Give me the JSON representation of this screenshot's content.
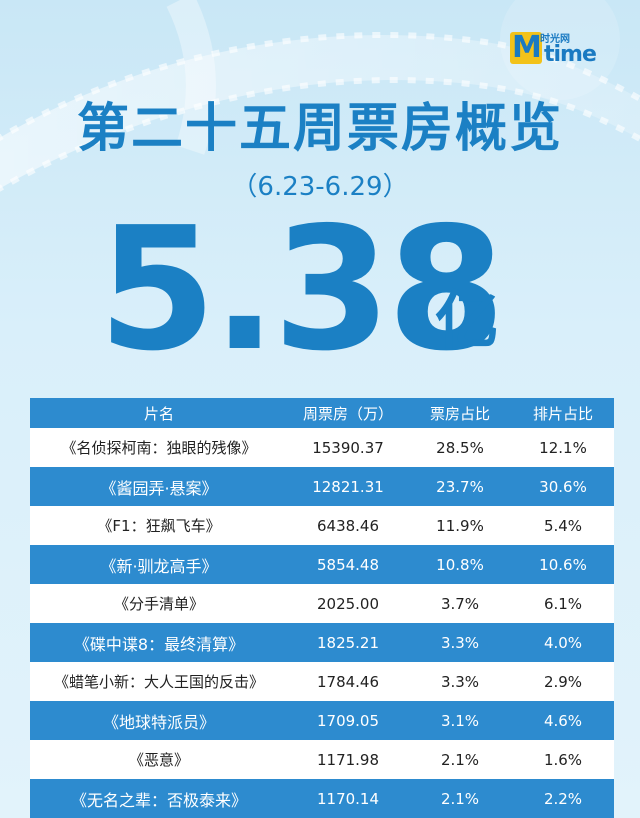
{
  "logo": {
    "small_text": "时光网",
    "brand_text": "time"
  },
  "title": "第二十五周票房概览",
  "date_range": "（6.23-6.29）",
  "total": {
    "value": "5.38",
    "unit": "亿"
  },
  "table": {
    "headers": [
      "片名",
      "周票房（万）",
      "票房占比",
      "排片占比"
    ],
    "rows": [
      [
        "《名侦探柯南：独眼的残像》",
        "15390.37",
        "28.5%",
        "12.1%"
      ],
      [
        "《酱园弄·悬案》",
        "12821.31",
        "23.7%",
        "30.6%"
      ],
      [
        "《F1：狂飙飞车》",
        "6438.46",
        "11.9%",
        "5.4%"
      ],
      [
        "《新·驯龙高手》",
        "5854.48",
        "10.8%",
        "10.6%"
      ],
      [
        "《分手清单》",
        "2025.00",
        "3.7%",
        "6.1%"
      ],
      [
        "《碟中谍8：最终清算》",
        "1825.21",
        "3.3%",
        "4.0%"
      ],
      [
        "《蜡笔小新：大人王国的反击》",
        "1784.46",
        "3.3%",
        "2.9%"
      ],
      [
        "《地球特派员》",
        "1709.05",
        "3.1%",
        "4.6%"
      ],
      [
        "《恶意》",
        "1171.98",
        "2.1%",
        "1.6%"
      ],
      [
        "《无名之辈：否极泰来》",
        "1170.14",
        "2.1%",
        "2.2%"
      ]
    ]
  },
  "colors": {
    "accent": "#1b80c4",
    "row_blue": "#2d8bcf",
    "logo_yellow": "#f2c21a"
  }
}
